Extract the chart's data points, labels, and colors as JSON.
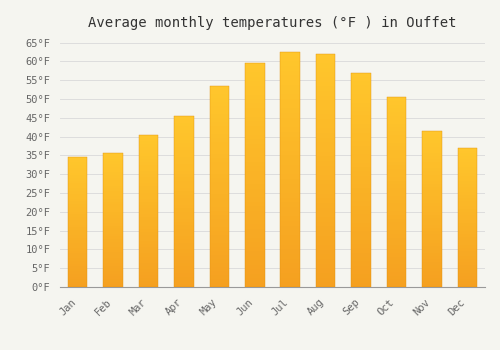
{
  "title": "Average monthly temperatures (°F ) in Ouffet",
  "months": [
    "Jan",
    "Feb",
    "Mar",
    "Apr",
    "May",
    "Jun",
    "Jul",
    "Aug",
    "Sep",
    "Oct",
    "Nov",
    "Dec"
  ],
  "values": [
    34.5,
    35.5,
    40.5,
    45.5,
    53.5,
    59.5,
    62.5,
    62.0,
    57.0,
    50.5,
    41.5,
    37.0
  ],
  "bar_color_top": "#FFC72C",
  "bar_color_bottom": "#F5A020",
  "background_color": "#F5F5F0",
  "grid_color": "#DDDDDD",
  "ylim": [
    0,
    67
  ],
  "yticks": [
    0,
    5,
    10,
    15,
    20,
    25,
    30,
    35,
    40,
    45,
    50,
    55,
    60,
    65
  ],
  "title_fontsize": 10,
  "tick_fontsize": 7.5,
  "title_color": "#333333",
  "tick_color": "#666666",
  "bar_width": 0.55
}
